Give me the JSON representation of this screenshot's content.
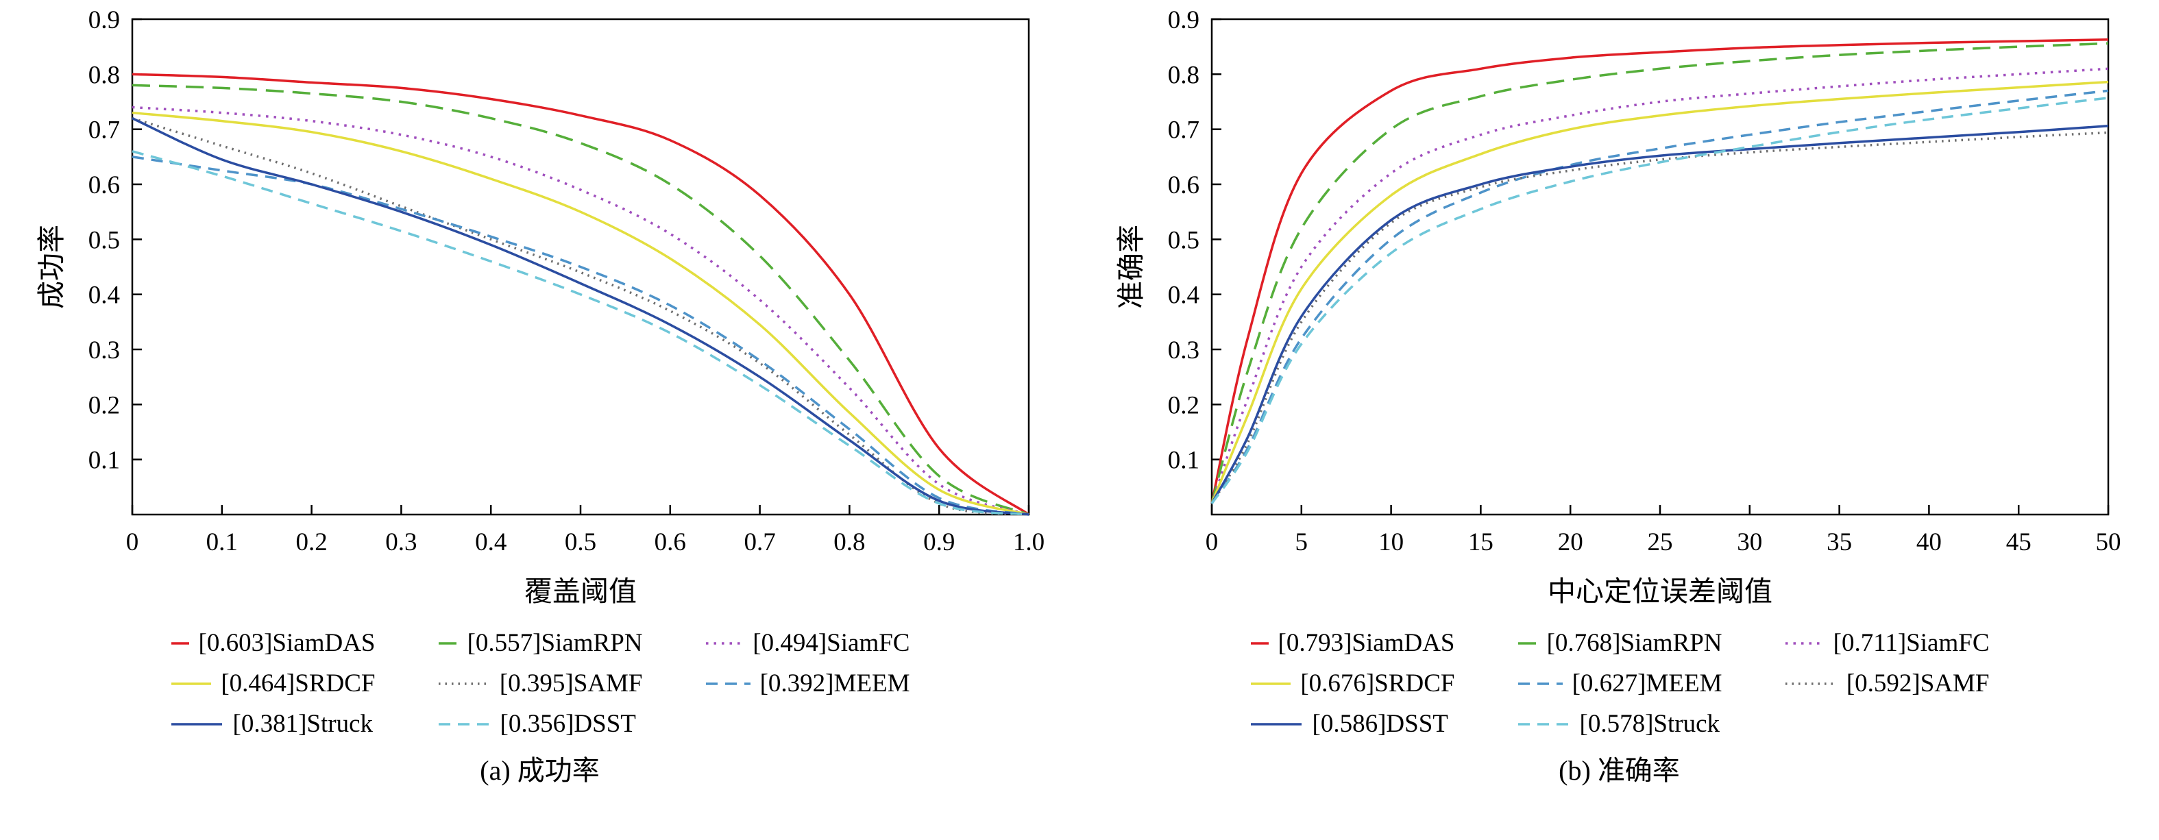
{
  "page": {
    "background": "#ffffff"
  },
  "charts": [
    {
      "type": "line",
      "ylabel": "成功率",
      "xlabel": "覆盖阈值",
      "caption": "(a) 成功率",
      "xlim": [
        0,
        1.0
      ],
      "ylim": [
        0,
        0.9
      ],
      "grid": false,
      "legend_position": "below",
      "xticks": {
        "values": [
          0,
          0.1,
          0.2,
          0.3,
          0.4,
          0.5,
          0.6,
          0.7,
          0.8,
          0.9,
          1.0
        ],
        "labels": [
          "0",
          "0.1",
          "0.2",
          "0.3",
          "0.4",
          "0.5",
          "0.6",
          "0.7",
          "0.8",
          "0.9",
          "1.0"
        ]
      },
      "yticks": {
        "values": [
          0.1,
          0.2,
          0.3,
          0.4,
          0.5,
          0.6,
          0.7,
          0.8,
          0.9
        ],
        "labels": [
          "0.1",
          "0.2",
          "0.3",
          "0.4",
          "0.5",
          "0.6",
          "0.7",
          "0.8",
          "0.9"
        ]
      },
      "x": [
        0,
        0.1,
        0.2,
        0.3,
        0.4,
        0.5,
        0.6,
        0.7,
        0.8,
        0.9,
        1.0
      ],
      "series": [
        {
          "name": "[0.603]SiamDAS",
          "color": "#e01f26",
          "dash": "solid",
          "values": [
            0.8,
            0.795,
            0.785,
            0.775,
            0.755,
            0.725,
            0.68,
            0.58,
            0.4,
            0.12,
            0.0
          ]
        },
        {
          "name": "[0.557]SiamRPN",
          "color": "#55ae3a",
          "dash": "longdash",
          "values": [
            0.78,
            0.775,
            0.765,
            0.75,
            0.72,
            0.675,
            0.6,
            0.47,
            0.28,
            0.07,
            0.0
          ]
        },
        {
          "name": "[0.494]SiamFC",
          "color": "#a04fbe",
          "dash": "dot",
          "values": [
            0.74,
            0.73,
            0.715,
            0.69,
            0.65,
            0.59,
            0.51,
            0.39,
            0.23,
            0.055,
            0.0
          ]
        },
        {
          "name": "[0.464]SRDCF",
          "color": "#e3de3e",
          "dash": "solid",
          "values": [
            0.73,
            0.715,
            0.695,
            0.66,
            0.61,
            0.55,
            0.465,
            0.345,
            0.185,
            0.045,
            0.0
          ]
        },
        {
          "name": "[0.395]SAMF",
          "color": "#6e6e6e",
          "dash": "finedot",
          "values": [
            0.72,
            0.67,
            0.62,
            0.56,
            0.5,
            0.44,
            0.37,
            0.275,
            0.145,
            0.02,
            0.0
          ]
        },
        {
          "name": "[0.392]MEEM",
          "color": "#4e93c9",
          "dash": "dash",
          "values": [
            0.65,
            0.625,
            0.6,
            0.555,
            0.505,
            0.45,
            0.38,
            0.28,
            0.155,
            0.03,
            0.0
          ]
        },
        {
          "name": "[0.381]Struck",
          "color": "#2b4da1",
          "dash": "solid",
          "values": [
            0.72,
            0.645,
            0.6,
            0.55,
            0.49,
            0.42,
            0.345,
            0.25,
            0.135,
            0.025,
            0.0
          ]
        },
        {
          "name": "[0.356]DSST",
          "color": "#6ec6d8",
          "dash": "dash",
          "values": [
            0.66,
            0.615,
            0.565,
            0.515,
            0.46,
            0.4,
            0.33,
            0.235,
            0.125,
            0.02,
            0.0
          ]
        }
      ]
    },
    {
      "type": "line",
      "ylabel": "准确率",
      "xlabel": "中心定位误差阈值",
      "caption": "(b) 准确率",
      "xlim": [
        0,
        50
      ],
      "ylim": [
        0,
        0.9
      ],
      "grid": false,
      "legend_position": "below",
      "xticks": {
        "values": [
          0,
          5,
          10,
          15,
          20,
          25,
          30,
          35,
          40,
          45,
          50
        ],
        "labels": [
          "0",
          "5",
          "10",
          "15",
          "20",
          "25",
          "30",
          "35",
          "40",
          "45",
          "50"
        ]
      },
      "yticks": {
        "values": [
          0.1,
          0.2,
          0.3,
          0.4,
          0.5,
          0.6,
          0.7,
          0.8,
          0.9
        ],
        "labels": [
          "0.1",
          "0.2",
          "0.3",
          "0.4",
          "0.5",
          "0.6",
          "0.7",
          "0.8",
          "0.9"
        ]
      },
      "x": [
        0,
        2,
        5,
        10,
        15,
        20,
        25,
        30,
        35,
        40,
        45,
        50
      ],
      "series": [
        {
          "name": "[0.793]SiamDAS",
          "color": "#e01f26",
          "dash": "solid",
          "values": [
            0.02,
            0.32,
            0.62,
            0.77,
            0.81,
            0.83,
            0.84,
            0.848,
            0.853,
            0.857,
            0.86,
            0.863
          ]
        },
        {
          "name": "[0.768]SiamRPN",
          "color": "#55ae3a",
          "dash": "longdash",
          "values": [
            0.02,
            0.26,
            0.52,
            0.7,
            0.76,
            0.79,
            0.81,
            0.824,
            0.835,
            0.843,
            0.85,
            0.856
          ]
        },
        {
          "name": "[0.711]SiamFC",
          "color": "#a04fbe",
          "dash": "dot",
          "values": [
            0.02,
            0.21,
            0.45,
            0.62,
            0.69,
            0.725,
            0.75,
            0.765,
            0.778,
            0.79,
            0.8,
            0.81
          ]
        },
        {
          "name": "[0.676]SRDCF",
          "color": "#e3de3e",
          "dash": "solid",
          "values": [
            0.02,
            0.18,
            0.41,
            0.58,
            0.655,
            0.7,
            0.725,
            0.742,
            0.755,
            0.766,
            0.776,
            0.786
          ]
        },
        {
          "name": "[0.627]MEEM",
          "color": "#4e93c9",
          "dash": "dash",
          "values": [
            0.02,
            0.12,
            0.32,
            0.5,
            0.585,
            0.635,
            0.665,
            0.69,
            0.713,
            0.733,
            0.752,
            0.77
          ]
        },
        {
          "name": "[0.592]SAMF",
          "color": "#6e6e6e",
          "dash": "finedot",
          "values": [
            0.02,
            0.13,
            0.35,
            0.53,
            0.595,
            0.625,
            0.645,
            0.658,
            0.668,
            0.677,
            0.686,
            0.694
          ]
        },
        {
          "name": "[0.586]DSST",
          "color": "#2b4da1",
          "dash": "solid",
          "values": [
            0.02,
            0.14,
            0.36,
            0.535,
            0.6,
            0.632,
            0.652,
            0.664,
            0.675,
            0.685,
            0.695,
            0.706
          ]
        },
        {
          "name": "[0.578]Struck",
          "color": "#6ec6d8",
          "dash": "dash",
          "values": [
            0.02,
            0.115,
            0.31,
            0.475,
            0.555,
            0.605,
            0.64,
            0.668,
            0.695,
            0.718,
            0.738,
            0.757
          ]
        }
      ]
    }
  ]
}
